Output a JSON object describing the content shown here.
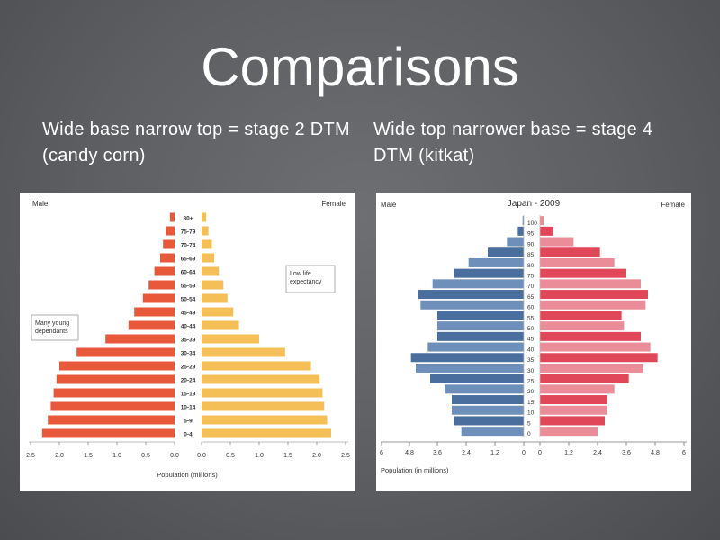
{
  "slide": {
    "title": "Comparisons",
    "left_caption": "Wide base narrow top = stage 2 DTM (candy corn)",
    "right_caption": "Wide top narrower base = stage 4 DTM (kitkat)"
  },
  "chart_data": [
    {
      "type": "bar",
      "subtype": "population-pyramid",
      "male_label": "Male",
      "female_label": "Female",
      "xlabel": "Population (millions)",
      "x_ticks": [
        "2.5",
        "2.0",
        "1.5",
        "1.0",
        "0.5",
        "0.0",
        "0.0",
        "0.5",
        "1.0",
        "1.5",
        "2.0",
        "2.5"
      ],
      "xlim": [
        0,
        2.5
      ],
      "age_groups": [
        "0-4",
        "5-9",
        "10-14",
        "15-19",
        "20-24",
        "25-29",
        "30-34",
        "35-39",
        "40-44",
        "45-49",
        "50-54",
        "55-59",
        "60-64",
        "65-69",
        "70-74",
        "75-79",
        "80+"
      ],
      "series": [
        {
          "name": "Male",
          "values": [
            2.3,
            2.2,
            2.15,
            2.1,
            2.05,
            2.0,
            1.7,
            1.2,
            0.8,
            0.7,
            0.55,
            0.45,
            0.35,
            0.25,
            0.2,
            0.15,
            0.08
          ]
        },
        {
          "name": "Female",
          "values": [
            2.25,
            2.18,
            2.13,
            2.1,
            2.05,
            1.9,
            1.45,
            1.0,
            0.65,
            0.55,
            0.45,
            0.38,
            0.3,
            0.22,
            0.18,
            0.12,
            0.08
          ]
        }
      ],
      "annotations": [
        "Many young dependants",
        "Low life expectancy"
      ],
      "colors": {
        "male": "#e8593c",
        "female": "#f5bf57"
      },
      "legend": "none",
      "grid": false
    },
    {
      "type": "bar",
      "subtype": "population-pyramid",
      "title": "Japan - 2009",
      "male_label": "Male",
      "female_label": "Female",
      "xlabel": "Population (in millions)",
      "x_ticks": [
        "6",
        "4.8",
        "3.6",
        "2.4",
        "1.2",
        "0",
        "0",
        "1.2",
        "2.4",
        "3.6",
        "4.8",
        "6"
      ],
      "xlim": [
        0,
        6
      ],
      "age_ticks": [
        "0",
        "5",
        "10",
        "15",
        "20",
        "25",
        "30",
        "35",
        "40",
        "45",
        "50",
        "55",
        "60",
        "65",
        "70",
        "75",
        "80",
        "85",
        "90",
        "95",
        "100"
      ],
      "age_groups": [
        "0-4",
        "5-9",
        "10-14",
        "15-19",
        "20-24",
        "25-29",
        "30-34",
        "35-39",
        "40-44",
        "45-49",
        "50-54",
        "55-59",
        "60-64",
        "65-69",
        "70-74",
        "75-79",
        "80-84",
        "85-89",
        "90-94",
        "95-99",
        "100+"
      ],
      "series": [
        {
          "name": "Male",
          "values": [
            2.6,
            2.9,
            3.0,
            3.0,
            3.3,
            3.9,
            4.5,
            4.7,
            4.0,
            3.6,
            3.6,
            3.6,
            4.3,
            4.4,
            3.8,
            2.9,
            2.3,
            1.5,
            0.7,
            0.25,
            0.05
          ]
        },
        {
          "name": "Female",
          "values": [
            2.4,
            2.7,
            2.8,
            2.8,
            3.1,
            3.7,
            4.3,
            4.9,
            4.6,
            4.2,
            3.5,
            3.4,
            4.4,
            4.5,
            4.2,
            3.6,
            3.1,
            2.5,
            1.4,
            0.55,
            0.15
          ]
        }
      ],
      "colors": {
        "male": "#4a6f9e",
        "female": "#e0485a"
      },
      "legend": "none",
      "grid": false
    }
  ]
}
